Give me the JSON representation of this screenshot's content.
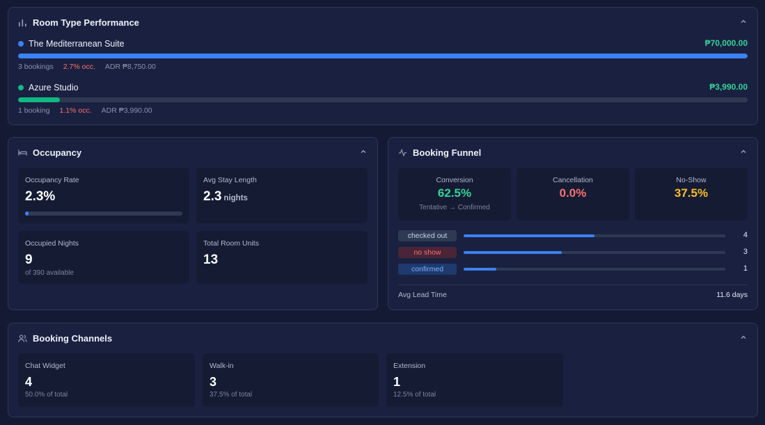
{
  "room_performance": {
    "title": "Room Type Performance",
    "rooms": [
      {
        "name": "The Mediterranean Suite",
        "revenue": "₱70,000.00",
        "bookings": "3 bookings",
        "occupancy": "2.7% occ.",
        "adr": "ADR ₱8,750.00",
        "revenue_share": 1.0,
        "color": "#3b82f6"
      },
      {
        "name": "Azure Studio",
        "revenue": "₱3,990.00",
        "bookings": "1 booking",
        "occupancy": "1.1% occ.",
        "adr": "ADR ₱3,990.00",
        "revenue_share": 0.057,
        "color": "#10b981"
      }
    ]
  },
  "occupancy": {
    "title": "Occupancy",
    "rate_label": "Occupancy Rate",
    "rate_value": "2.3%",
    "rate_fraction": 0.023,
    "stay_label": "Avg Stay Length",
    "stay_value": "2.3",
    "stay_unit": "nights",
    "nights_label": "Occupied Nights",
    "nights_value": "9",
    "nights_sub": "of 390 available",
    "units_label": "Total Room Units",
    "units_value": "13"
  },
  "funnel": {
    "title": "Booking Funnel",
    "conversion_label": "Conversion",
    "conversion_value": "62.5%",
    "conversion_sub": "Tentative → Confirmed",
    "cancellation_label": "Cancellation",
    "cancellation_value": "0.0%",
    "noshow_label": "No-Show",
    "noshow_value": "37.5%",
    "statuses": [
      {
        "label": "checked out",
        "count": "4",
        "fraction": 0.5,
        "bg": "#2e3a53",
        "fg": "#cbd2e1"
      },
      {
        "label": "no show",
        "count": "3",
        "fraction": 0.375,
        "bg": "#4a2437",
        "fg": "#f87171"
      },
      {
        "label": "confirmed",
        "count": "1",
        "fraction": 0.125,
        "bg": "#1e3a6e",
        "fg": "#7fb0ff"
      }
    ],
    "lead_label": "Avg Lead Time",
    "lead_value": "11.6 days"
  },
  "channels": {
    "title": "Booking Channels",
    "items": [
      {
        "label": "Chat Widget",
        "value": "4",
        "sub": "50.0% of total"
      },
      {
        "label": "Walk-in",
        "value": "3",
        "sub": "37.5% of total"
      },
      {
        "label": "Extension",
        "value": "1",
        "sub": "12.5% of total"
      }
    ]
  },
  "colors": {
    "accent": "#3b82f6",
    "green": "#34d399",
    "red": "#f87171",
    "amber": "#fbbf24"
  }
}
